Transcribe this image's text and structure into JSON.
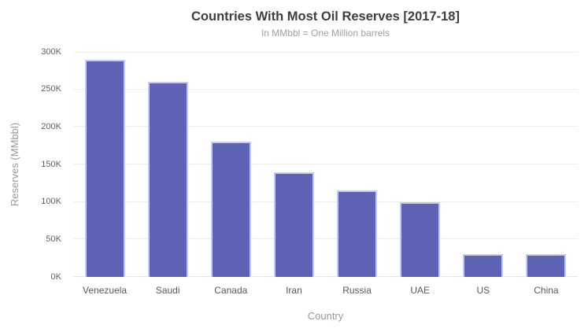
{
  "chart_data": {
    "type": "bar",
    "title": "Countries With Most Oil Reserves [2017-18]",
    "subtitle": "In MMbbl = One Million barrels",
    "xlabel": "Country",
    "ylabel": "Reserves (MMbbl)",
    "categories": [
      "Venezuela",
      "Saudi",
      "Canada",
      "Iran",
      "Russia",
      "UAE",
      "US",
      "China"
    ],
    "values": [
      290,
      260,
      180,
      140,
      115,
      100,
      30,
      30
    ],
    "value_unit": "thousand MMbbl",
    "value_suffix": "K",
    "ylim": [
      0,
      300
    ],
    "y_ticks": [
      {
        "value": 0,
        "label": "0K"
      },
      {
        "value": 50,
        "label": "50K"
      },
      {
        "value": 100,
        "label": "100K"
      },
      {
        "value": 150,
        "label": "150K"
      },
      {
        "value": 200,
        "label": "200K"
      },
      {
        "value": 250,
        "label": "250K"
      },
      {
        "value": 300,
        "label": "300K"
      }
    ],
    "grid": true,
    "legend": false,
    "colors": {
      "bar": "#5D62B5",
      "bar_border": "#c9cce9",
      "grid": "#efeff2",
      "axis_line": "#e2e3e8",
      "title": "#3a3f45",
      "subtitle": "#9aa0a8",
      "tick_label": "#56595f",
      "axis_title": "#959aa1",
      "background": "#ffffff"
    }
  }
}
